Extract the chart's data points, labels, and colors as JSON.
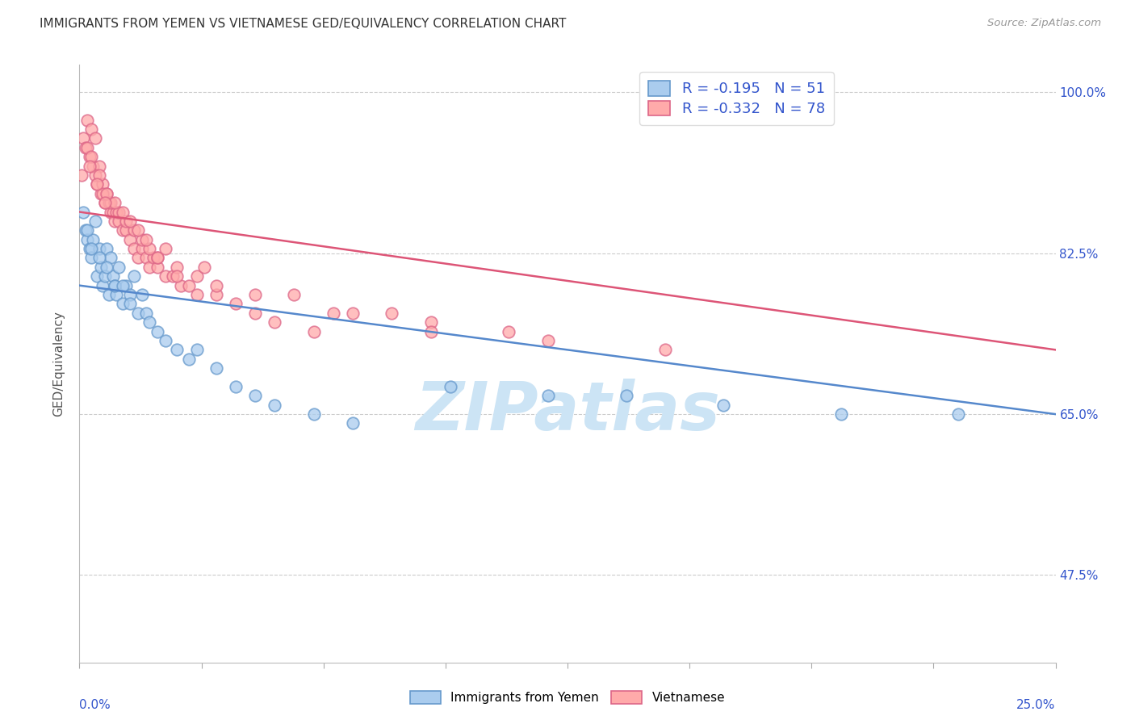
{
  "title": "IMMIGRANTS FROM YEMEN VS VIETNAMESE GED/EQUIVALENCY CORRELATION CHART",
  "source": "Source: ZipAtlas.com",
  "ylabel": "GED/Equivalency",
  "xmin": 0.0,
  "xmax": 25.0,
  "ymin": 38.0,
  "ymax": 103.0,
  "yticks": [
    47.5,
    65.0,
    82.5,
    100.0
  ],
  "blue_color": "#aaccee",
  "blue_edge": "#6699cc",
  "pink_color": "#ffaaaa",
  "pink_edge": "#dd6688",
  "blue_line_color": "#5588cc",
  "pink_line_color": "#dd5577",
  "R_blue": -0.195,
  "N_blue": 51,
  "R_pink": -0.332,
  "N_pink": 78,
  "legend_text_color": "#3355cc",
  "watermark_color": "#cce4f5",
  "blue_x": [
    0.1,
    0.15,
    0.2,
    0.25,
    0.3,
    0.35,
    0.4,
    0.45,
    0.5,
    0.55,
    0.6,
    0.65,
    0.7,
    0.75,
    0.8,
    0.85,
    0.9,
    0.95,
    1.0,
    1.1,
    1.2,
    1.3,
    1.4,
    1.5,
    1.6,
    1.7,
    1.8,
    2.0,
    2.2,
    2.5,
    2.8,
    3.0,
    3.5,
    4.0,
    4.5,
    5.0,
    6.0,
    7.0,
    9.5,
    12.0,
    14.0,
    16.5,
    19.5,
    22.5,
    0.2,
    0.3,
    0.5,
    0.7,
    0.9,
    1.1,
    1.3
  ],
  "blue_y": [
    87,
    85,
    84,
    83,
    82,
    84,
    86,
    80,
    83,
    81,
    79,
    80,
    83,
    78,
    82,
    80,
    79,
    78,
    81,
    77,
    79,
    78,
    80,
    76,
    78,
    76,
    75,
    74,
    73,
    72,
    71,
    72,
    70,
    68,
    67,
    66,
    65,
    64,
    68,
    67,
    67,
    66,
    65,
    65,
    85,
    83,
    82,
    81,
    79,
    79,
    77
  ],
  "pink_x": [
    0.05,
    0.1,
    0.15,
    0.2,
    0.25,
    0.3,
    0.35,
    0.4,
    0.45,
    0.5,
    0.55,
    0.6,
    0.65,
    0.7,
    0.75,
    0.8,
    0.85,
    0.9,
    0.95,
    1.0,
    1.1,
    1.2,
    1.3,
    1.4,
    1.5,
    1.6,
    1.7,
    1.8,
    1.9,
    2.0,
    2.2,
    2.4,
    2.6,
    2.8,
    3.0,
    3.5,
    4.0,
    4.5,
    5.0,
    6.0,
    7.0,
    9.0,
    11.0,
    0.2,
    0.4,
    0.6,
    0.8,
    1.0,
    1.2,
    1.4,
    1.6,
    1.8,
    2.0,
    2.5,
    3.0,
    0.3,
    0.5,
    0.7,
    0.9,
    1.1,
    1.3,
    1.5,
    1.7,
    2.0,
    2.5,
    3.5,
    4.5,
    6.5,
    9.0,
    12.0,
    15.0,
    0.25,
    0.45,
    0.65,
    2.2,
    3.2,
    5.5,
    8.0
  ],
  "pink_y": [
    91,
    95,
    94,
    97,
    93,
    96,
    92,
    95,
    90,
    92,
    89,
    90,
    88,
    89,
    88,
    87,
    87,
    86,
    87,
    86,
    85,
    85,
    84,
    83,
    82,
    83,
    82,
    81,
    82,
    81,
    80,
    80,
    79,
    79,
    78,
    78,
    77,
    76,
    75,
    74,
    76,
    75,
    74,
    94,
    91,
    89,
    88,
    87,
    86,
    85,
    84,
    83,
    82,
    81,
    80,
    93,
    91,
    89,
    88,
    87,
    86,
    85,
    84,
    82,
    80,
    79,
    78,
    76,
    74,
    73,
    72,
    92,
    90,
    88,
    83,
    81,
    78,
    76
  ]
}
